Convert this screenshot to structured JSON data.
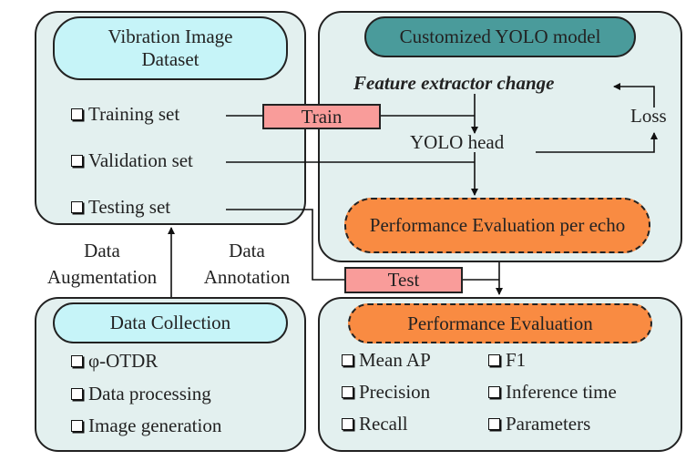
{
  "dataset": {
    "title": "Vibration Image Dataset",
    "items": [
      "Training set",
      "Validation set",
      "Testing set"
    ]
  },
  "model": {
    "title": "Customized YOLO model",
    "feature_extractor": "Feature extractor change",
    "head": "YOLO head",
    "loss": "Loss",
    "per_echo": "Performance Evaluation per echo"
  },
  "train_label": "Train",
  "test_label": "Test",
  "augmentation": {
    "line1": "Data",
    "line2": "Augmentation"
  },
  "annotation": {
    "line1": "Data",
    "line2": "Annotation"
  },
  "collection": {
    "title": "Data Collection",
    "items": [
      "φ-OTDR",
      "Data processing",
      "Image generation"
    ]
  },
  "evaluation": {
    "title": "Performance Evaluation",
    "left_items": [
      "Mean AP",
      "Precision",
      "Recall"
    ],
    "right_items": [
      "F1",
      "Inference time",
      "Parameters"
    ]
  },
  "colors": {
    "panel": "#e3f0ef",
    "cyan": "#c6f4f8",
    "teal": "#4a9b9b",
    "orange": "#f98b42",
    "pink": "#f99c9a"
  }
}
